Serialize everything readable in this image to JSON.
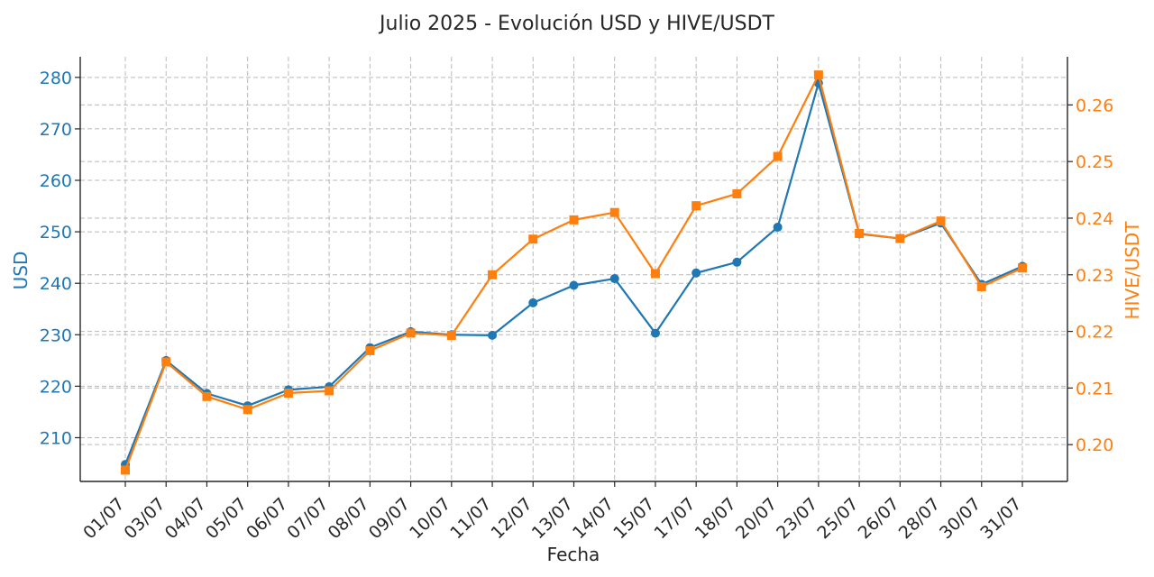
{
  "colors": {
    "usd": "#1f77b4",
    "hive": "#ff7f0e",
    "text": "#262626",
    "grid": "#b8b8b8"
  },
  "chart_data": {
    "type": "line",
    "title": "Julio 2025 - Evolución USD y HIVE/USDT",
    "xlabel": "Fecha",
    "categories": [
      "01/07",
      "03/07",
      "04/07",
      "05/07",
      "06/07",
      "07/07",
      "08/07",
      "09/07",
      "10/07",
      "11/07",
      "12/07",
      "13/07",
      "14/07",
      "15/07",
      "17/07",
      "18/07",
      "20/07",
      "23/07",
      "25/07",
      "26/07",
      "28/07",
      "30/07",
      "31/07"
    ],
    "left_axis": {
      "label": "USD",
      "ylim": [
        201.5,
        284.0
      ],
      "ticks": [
        210,
        220,
        230,
        240,
        250,
        260,
        270,
        280
      ]
    },
    "right_axis": {
      "label": "HIVE/USDT",
      "ylim": [
        0.1935,
        0.2685
      ],
      "ticks": [
        0.2,
        0.21,
        0.22,
        0.23,
        0.24,
        0.25,
        0.26
      ],
      "tick_labels": [
        "0.20",
        "0.21",
        "0.22",
        "0.23",
        "0.24",
        "0.25",
        "0.26"
      ]
    },
    "series": [
      {
        "name": "USD",
        "axis": "left",
        "marker": "circle",
        "values": [
          204.8,
          225.0,
          218.6,
          216.2,
          219.3,
          219.9,
          227.5,
          230.6,
          230.0,
          229.9,
          236.2,
          239.6,
          240.9,
          230.3,
          242.0,
          244.1,
          250.9,
          278.9,
          249.6,
          248.7,
          251.7,
          239.8,
          243.3
        ]
      },
      {
        "name": "HIVE/USDT",
        "axis": "right",
        "marker": "square",
        "values": [
          0.1955,
          0.2146,
          0.2085,
          0.2062,
          0.2091,
          0.2095,
          0.2166,
          0.2197,
          0.2193,
          0.23,
          0.2363,
          0.2397,
          0.241,
          0.2302,
          0.2422,
          0.2443,
          0.2509,
          0.2653,
          0.2373,
          0.2364,
          0.2395,
          0.2279,
          0.2312
        ]
      }
    ]
  }
}
